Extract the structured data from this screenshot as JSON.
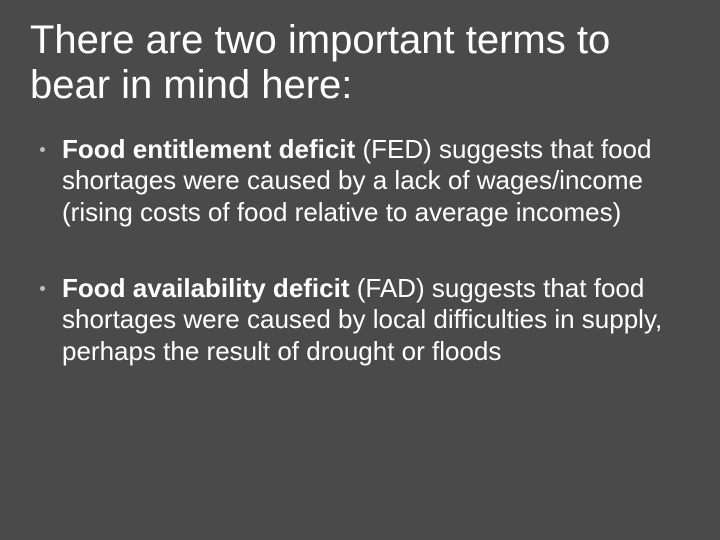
{
  "slide": {
    "background_color": "#4a4a4a",
    "text_color": "#ffffff",
    "bullet_color": "#bfbfbf",
    "title_fontsize": 40,
    "body_fontsize": 26,
    "title": "There are two important terms to bear in mind here:",
    "bullets": [
      {
        "bold_lead": "Food entitlement deficit ",
        "rest": "(FED) suggests that food shortages were caused by a lack of wages/income (rising costs of food relative to average incomes)"
      },
      {
        "bold_lead": "Food availability deficit ",
        "rest": "(FAD) suggests that food shortages were caused by local difficulties in supply, perhaps the result of drought or floods"
      }
    ]
  }
}
